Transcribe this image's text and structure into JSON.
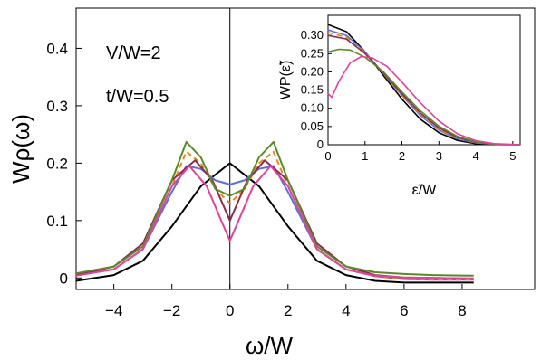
{
  "chart_data": [
    {
      "type": "line",
      "xlabel": "ω/W",
      "ylabel": "Wρ(ω)",
      "xlim": [
        -5.3,
        10.5
      ],
      "ylim": [
        -0.02,
        0.47
      ],
      "xticks": [
        -4,
        -2,
        0,
        2,
        4,
        6,
        8
      ],
      "yticks": [
        0,
        0.1,
        0.2,
        0.3,
        0.4
      ],
      "xtick_labels": [
        "−4",
        "−2",
        "0",
        "2",
        "4",
        "6",
        "8"
      ],
      "ytick_labels": [
        "0",
        "0.1",
        "0.2",
        "0.3",
        "0.4"
      ],
      "annotations": [
        "V/W=2",
        "t/W=0.5"
      ],
      "grid": false,
      "series": [
        {
          "color": "#000000",
          "dashed": false,
          "x": [
            -5.3,
            -4,
            -3,
            -2,
            -1,
            0,
            1,
            2,
            3,
            4,
            5,
            6,
            7,
            8.4
          ],
          "y": [
            -0.005,
            0.005,
            0.03,
            0.09,
            0.16,
            0.2,
            0.16,
            0.09,
            0.03,
            0.005,
            -0.005,
            -0.008,
            -0.008,
            -0.008
          ]
        },
        {
          "color": "#5b6fd8",
          "dashed": false,
          "x": [
            -5.3,
            -4,
            -3,
            -2,
            -1.5,
            -1,
            -0.5,
            0,
            0.5,
            1,
            1.5,
            2,
            3,
            4,
            5,
            6,
            7,
            8.4
          ],
          "y": [
            0.005,
            0.015,
            0.05,
            0.15,
            0.195,
            0.19,
            0.17,
            0.163,
            0.17,
            0.19,
            0.195,
            0.15,
            0.05,
            0.015,
            0.003,
            -0.002,
            -0.003,
            -0.003
          ]
        },
        {
          "color": "#e08a1a",
          "dashed": true,
          "x": [
            -5.3,
            -4,
            -3,
            -2,
            -1.5,
            -1,
            -0.5,
            0,
            0.5,
            1,
            1.5,
            2,
            3,
            4,
            5,
            6,
            7,
            8.4
          ],
          "y": [
            0.005,
            0.015,
            0.05,
            0.16,
            0.22,
            0.2,
            0.155,
            0.13,
            0.155,
            0.2,
            0.22,
            0.16,
            0.05,
            0.015,
            0.003,
            -0.002,
            -0.003,
            -0.003
          ]
        },
        {
          "color": "#8a2d4e",
          "dashed": false,
          "x": [
            -5.3,
            -4,
            -3,
            -2,
            -1.2,
            -0.6,
            0,
            0.6,
            1.2,
            2,
            3,
            4,
            5,
            6,
            7,
            8.4
          ],
          "y": [
            0.005,
            0.02,
            0.06,
            0.17,
            0.205,
            0.17,
            0.1,
            0.17,
            0.205,
            0.17,
            0.06,
            0.02,
            0.005,
            0.001,
            0.0,
            -0.001
          ]
        },
        {
          "color": "#5a8a28",
          "dashed": false,
          "x": [
            -5.3,
            -4,
            -3,
            -2,
            -1.5,
            -1,
            -0.5,
            0,
            0.5,
            1,
            1.5,
            2,
            3,
            4,
            5,
            6,
            7,
            8.4
          ],
          "y": [
            0.008,
            0.02,
            0.055,
            0.17,
            0.237,
            0.21,
            0.155,
            0.143,
            0.155,
            0.21,
            0.237,
            0.17,
            0.055,
            0.02,
            0.01,
            0.007,
            0.005,
            0.004
          ]
        },
        {
          "color": "#e0439a",
          "dashed": false,
          "x": [
            -5.3,
            -4,
            -3,
            -2,
            -1.4,
            -0.8,
            -0.3,
            0,
            0.3,
            0.8,
            1.4,
            2,
            3,
            4,
            5,
            6,
            7,
            8.4
          ],
          "y": [
            0.004,
            0.015,
            0.05,
            0.16,
            0.195,
            0.16,
            0.1,
            0.065,
            0.1,
            0.16,
            0.195,
            0.16,
            0.05,
            0.015,
            0.004,
            0.001,
            0.0,
            -0.001
          ]
        }
      ]
    },
    {
      "type": "line",
      "xlabel": "ε̃/W",
      "ylabel": "WP(ε̃)",
      "xlim": [
        0,
        5.2
      ],
      "ylim": [
        0,
        0.355
      ],
      "xticks": [
        0,
        1,
        2,
        3,
        4,
        5
      ],
      "yticks": [
        0,
        0.05,
        0.1,
        0.15,
        0.2,
        0.25,
        0.3
      ],
      "xtick_labels": [
        "0",
        "1",
        "2",
        "3",
        "4",
        "5"
      ],
      "ytick_labels": [
        "0",
        "0.05",
        "0.10",
        "0.15",
        "0.20",
        "0.25",
        "0.30"
      ],
      "grid": false,
      "series": [
        {
          "color": "#000000",
          "dashed": false,
          "x": [
            0,
            0.5,
            1,
            1.5,
            2,
            2.5,
            3,
            3.5,
            4,
            4.5,
            5.2
          ],
          "y": [
            0.33,
            0.31,
            0.255,
            0.19,
            0.125,
            0.07,
            0.033,
            0.012,
            0.003,
            0.0005,
            0
          ]
        },
        {
          "color": "#5b6fd8",
          "dashed": false,
          "x": [
            0,
            0.5,
            1,
            1.5,
            2,
            2.5,
            3,
            3.5,
            4,
            4.5,
            5.2
          ],
          "y": [
            0.315,
            0.3,
            0.255,
            0.195,
            0.135,
            0.08,
            0.04,
            0.016,
            0.005,
            0.0012,
            0
          ]
        },
        {
          "color": "#e08a1a",
          "dashed": true,
          "x": [
            0,
            0.5,
            1,
            1.5,
            2,
            2.5,
            3,
            3.5,
            4,
            4.5,
            5.2
          ],
          "y": [
            0.308,
            0.295,
            0.252,
            0.195,
            0.137,
            0.083,
            0.042,
            0.017,
            0.006,
            0.0015,
            0
          ]
        },
        {
          "color": "#8a2d4e",
          "dashed": false,
          "x": [
            0,
            0.5,
            1,
            1.5,
            2,
            2.5,
            3,
            3.5,
            4,
            4.5,
            5.2
          ],
          "y": [
            0.3,
            0.29,
            0.25,
            0.197,
            0.14,
            0.087,
            0.046,
            0.02,
            0.007,
            0.002,
            0
          ]
        },
        {
          "color": "#5a8a28",
          "dashed": false,
          "x": [
            0,
            0.3,
            0.6,
            1,
            1.5,
            2,
            2.5,
            3,
            3.5,
            4,
            4.5,
            5.2
          ],
          "y": [
            0.255,
            0.262,
            0.26,
            0.24,
            0.2,
            0.145,
            0.093,
            0.051,
            0.023,
            0.008,
            0.002,
            0
          ]
        },
        {
          "color": "#e0439a",
          "dashed": false,
          "x": [
            0,
            0.1,
            0.3,
            0.6,
            0.9,
            1.2,
            1.6,
            2,
            2.5,
            3,
            3.5,
            4,
            4.5,
            5.2
          ],
          "y": [
            0.14,
            0.13,
            0.175,
            0.225,
            0.242,
            0.238,
            0.215,
            0.172,
            0.115,
            0.065,
            0.03,
            0.011,
            0.003,
            0
          ]
        }
      ]
    }
  ]
}
